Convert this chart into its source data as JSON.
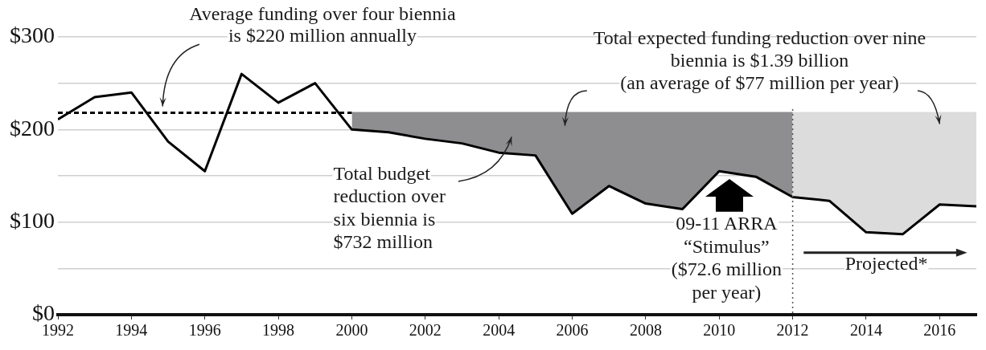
{
  "chart_data": {
    "type": "line",
    "x": [
      1992,
      1993,
      1994,
      1995,
      1996,
      1997,
      1998,
      1999,
      2000,
      2001,
      2002,
      2003,
      2004,
      2005,
      2006,
      2007,
      2008,
      2009,
      2010,
      2011,
      2012,
      2013,
      2014,
      2015,
      2016,
      2017
    ],
    "series": [
      {
        "type": "area",
        "x": [
          2000,
          2001,
          2002,
          2003,
          2004,
          2005,
          2006,
          2007,
          2008,
          2009,
          2010,
          2011,
          2012
        ],
        "values": [
          218,
          218,
          218,
          218,
          218,
          218,
          218,
          218,
          218,
          218,
          218,
          218,
          218
        ],
        "color": "#8e8e90"
      },
      {
        "type": "area",
        "x": [
          2012,
          2013,
          2014,
          2015,
          2016,
          2017
        ],
        "values": [
          218,
          218,
          218,
          218,
          218,
          218
        ],
        "color": "#dcdcdc"
      },
      {
        "type": "line",
        "x": [
          1992,
          2000
        ],
        "values": [
          218,
          218
        ],
        "color": "#000000",
        "line_style": "dashed"
      },
      {
        "color": "#000000",
        "values": [
          211,
          235,
          240,
          187,
          155,
          260,
          229,
          250,
          200,
          197,
          190,
          185,
          175,
          172,
          109,
          139,
          120,
          114,
          155,
          149,
          127,
          123,
          89,
          87,
          119,
          117
        ]
      }
    ],
    "xlim": [
      1992,
      2017
    ],
    "xticks": [
      1992,
      1994,
      1996,
      1998,
      2000,
      2002,
      2004,
      2006,
      2008,
      2010,
      2012,
      2014,
      2016
    ],
    "ylim": [
      0,
      300
    ],
    "yticks": [
      {
        "value": 0,
        "label": "$0"
      },
      {
        "value": 50,
        "label": null
      },
      {
        "value": 100,
        "label": "$100"
      },
      {
        "value": 150,
        "label": null
      },
      {
        "value": 200,
        "label": "$200"
      },
      {
        "value": 250,
        "label": null
      },
      {
        "value": 300,
        "label": "$300"
      }
    ],
    "grid": "y",
    "legend": false,
    "marker": "none",
    "ref_lines": [
      {
        "axis": "x",
        "value": 2012,
        "color": "#555555",
        "line_style": "dotted"
      }
    ],
    "annotations": [
      "Average funding over four biennia\nis $220 million annually",
      {
        "text": "Total expected funding reduction over nine\nbiennia is $1.39 billion\n(an average of $77 million per year)",
        "x": 2016,
        "y": 218
      },
      "Total budget\nreduction over\nsix biennia is\n$732 million",
      {
        "text": "09-11 ARRA\n“Stimulus”\n($72.6 million\nper year)",
        "x": 2010,
        "y": 155
      },
      "Projected*"
    ]
  }
}
